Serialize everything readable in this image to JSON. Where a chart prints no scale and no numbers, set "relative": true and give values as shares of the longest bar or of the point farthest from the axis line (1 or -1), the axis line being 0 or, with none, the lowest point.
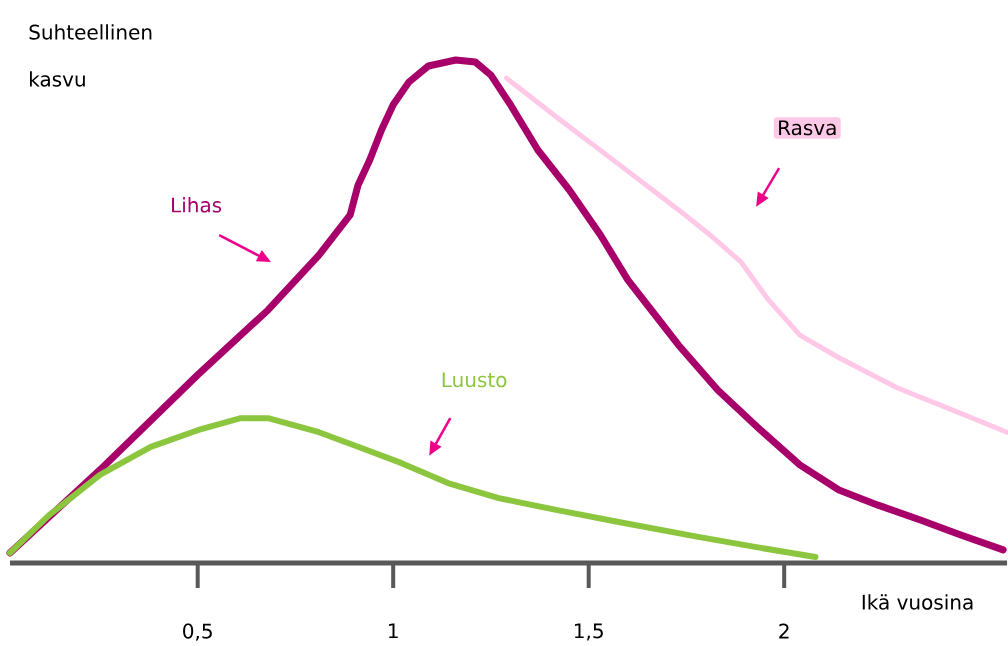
{
  "chart_data": {
    "type": "line",
    "relative": true,
    "ylabel": "Suhteellinen kasvu",
    "xlabel": "Ikä vuosina",
    "xlim": [
      0.02,
      2.57
    ],
    "xticks": [
      {
        "value": 0.5,
        "label": "0,5"
      },
      1,
      {
        "value": 1.5,
        "label": "1,5"
      },
      2
    ],
    "line_style": "solid",
    "series": [
      {
        "name": "Lihas",
        "color": "#a8006a",
        "x": [
          0.02,
          0.25,
          0.5,
          0.68,
          0.81,
          0.89,
          0.91,
          0.94,
          0.97,
          1.0,
          1.04,
          1.09,
          1.16,
          1.21,
          1.25,
          1.3,
          1.37,
          1.45,
          1.53,
          1.6,
          1.66,
          1.73,
          1.83,
          1.94,
          2.04,
          2.14,
          2.24,
          2.35,
          2.45,
          2.56
        ],
        "values": [
          0.02,
          0.185,
          0.374,
          0.503,
          0.612,
          0.692,
          0.751,
          0.801,
          0.861,
          0.911,
          0.956,
          0.988,
          1,
          0.996,
          0.97,
          0.911,
          0.821,
          0.742,
          0.652,
          0.563,
          0.503,
          0.433,
          0.344,
          0.264,
          0.195,
          0.145,
          0.115,
          0.085,
          0.056,
          0.026
        ]
      },
      {
        "name": "Luusto",
        "color": "#8cc63f",
        "x": [
          0.02,
          0.12,
          0.25,
          0.38,
          0.5,
          0.61,
          0.68,
          0.81,
          0.91,
          1.02,
          1.14,
          1.27,
          1.42,
          1.58,
          1.78,
          1.94,
          2.08
        ],
        "values": [
          0.02,
          0.095,
          0.175,
          0.231,
          0.264,
          0.288,
          0.288,
          0.26,
          0.231,
          0.199,
          0.159,
          0.129,
          0.105,
          0.081,
          0.052,
          0.03,
          0.012
        ]
      },
      {
        "name": "Rasva",
        "color": "#ffc8e6",
        "x": [
          1.29,
          1.42,
          1.58,
          1.73,
          1.82,
          1.89,
          1.96,
          2.04,
          2.14,
          2.29,
          2.45,
          2.57
        ],
        "values": [
          0.964,
          0.885,
          0.791,
          0.702,
          0.646,
          0.598,
          0.523,
          0.453,
          0.408,
          0.348,
          0.298,
          0.26
        ]
      }
    ]
  }
}
